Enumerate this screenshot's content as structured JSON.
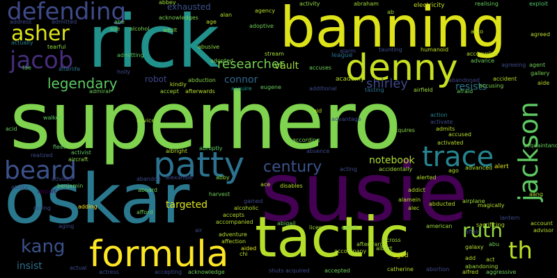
{
  "background": "#000000",
  "palette": [
    "#440154",
    "#3b528b",
    "#21918c",
    "#5ec962",
    "#fde725",
    "#7fd34e",
    "#2a788e",
    "#482878"
  ],
  "words": [
    {
      "text": "superhero",
      "color": "#7fd34e",
      "vertical": false
    },
    {
      "text": "susie",
      "color": "#440154",
      "vertical": false
    },
    {
      "text": "rick",
      "color": "#21918c",
      "vertical": false
    },
    {
      "text": "banning",
      "color": "#dde318",
      "vertical": false
    },
    {
      "text": "oskar",
      "color": "#2a788e",
      "vertical": false
    },
    {
      "text": "tactic",
      "color": "#b5de2b",
      "vertical": false
    },
    {
      "text": "denny",
      "color": "#c8e020",
      "vertical": false
    },
    {
      "text": "patty",
      "color": "#2c728e",
      "vertical": false
    },
    {
      "text": "formula",
      "color": "#fde725",
      "vertical": false
    },
    {
      "text": "beard",
      "color": "#3b528b",
      "vertical": false
    },
    {
      "text": "trace",
      "color": "#25848e",
      "vertical": false
    },
    {
      "text": "jackson",
      "color": "#5ec962",
      "vertical": true
    },
    {
      "text": "defending",
      "color": "#3e4a89",
      "vertical": false
    },
    {
      "text": "asher",
      "color": "#dde318",
      "vertical": false
    },
    {
      "text": "jacob",
      "color": "#472d7b",
      "vertical": false
    },
    {
      "text": "ruth",
      "color": "#95d840",
      "vertical": false
    },
    {
      "text": "th",
      "color": "#b8de29",
      "vertical": false
    },
    {
      "text": "kang",
      "color": "#3b528b",
      "vertical": false
    },
    {
      "text": "century",
      "color": "#3b528b",
      "vertical": false
    },
    {
      "text": "legendary",
      "color": "#5ec962",
      "vertical": false
    },
    {
      "text": "researcher",
      "color": "#75d054",
      "vertical": false
    },
    {
      "text": "shirley",
      "color": "#3e4989",
      "vertical": false
    },
    {
      "text": "notebook",
      "color": "#addc30",
      "vertical": false
    },
    {
      "text": "resists",
      "color": "#2a788e",
      "vertical": false
    },
    {
      "text": "connor",
      "color": "#31688e",
      "vertical": false
    },
    {
      "text": "insist",
      "color": "#2d708e",
      "vertical": false
    },
    {
      "text": "targeted",
      "color": "#dde318",
      "vertical": false
    },
    {
      "text": "vault",
      "color": "#9fda3a",
      "vertical": false
    },
    {
      "text": "exhausted",
      "color": "#3b528b",
      "vertical": false
    },
    {
      "text": "robot",
      "color": "#414487",
      "vertical": false
    },
    {
      "text": "league",
      "color": "#2c728e",
      "vertical": false
    },
    {
      "text": "academy",
      "color": "#b5de2b",
      "vertical": false
    },
    {
      "text": "abbey",
      "color": "#9fda3a",
      "vertical": false
    },
    {
      "text": "acknowledges",
      "color": "#7ad151",
      "vertical": false
    },
    {
      "text": "alan",
      "color": "#b5de2b",
      "vertical": false
    },
    {
      "text": "agency",
      "color": "#b5de2b",
      "vertical": false
    },
    {
      "text": "activity",
      "color": "#93d741",
      "vertical": false
    },
    {
      "text": "abraham",
      "color": "#a0da39",
      "vertical": false
    },
    {
      "text": "electricity",
      "color": "#c2df23",
      "vertical": false
    },
    {
      "text": "realising",
      "color": "#67cc5c",
      "vertical": false
    },
    {
      "text": "exploit",
      "color": "#52c569",
      "vertical": false
    },
    {
      "text": "address",
      "color": "#3e4a89",
      "vertical": false
    },
    {
      "text": "admitted",
      "color": "#3e4a89",
      "vertical": false
    },
    {
      "text": "abe",
      "color": "#5ec962",
      "vertical": false
    },
    {
      "text": "sue",
      "color": "#7ad151",
      "vertical": false
    },
    {
      "text": "alcohol",
      "color": "#7ad151",
      "vertical": false
    },
    {
      "text": "adult",
      "color": "#8bd646",
      "vertical": false
    },
    {
      "text": "age",
      "color": "#b8de29",
      "vertical": false
    },
    {
      "text": "adoptive",
      "color": "#6ece58",
      "vertical": false
    },
    {
      "text": "auto",
      "color": "#bddf26",
      "vertical": false
    },
    {
      "text": "agreed",
      "color": "#b5de2b",
      "vertical": false
    },
    {
      "text": "actually",
      "color": "#26828e",
      "vertical": false
    },
    {
      "text": "tearful",
      "color": "#8bd646",
      "vertical": false
    },
    {
      "text": "abusive",
      "color": "#8bd646",
      "vertical": false
    },
    {
      "text": "admitting",
      "color": "#5ec962",
      "vertical": false
    },
    {
      "text": "afterlife",
      "color": "#2c728e",
      "vertical": false
    },
    {
      "text": "holly",
      "color": "#3e4a89",
      "vertical": false
    },
    {
      "text": "stream",
      "color": "#a5db36",
      "vertical": false
    },
    {
      "text": "adopted",
      "color": "#7ad151",
      "vertical": false
    },
    {
      "text": "alarm",
      "color": "#3e4a89",
      "vertical": false
    },
    {
      "text": "taunting",
      "color": "#3b528b",
      "vertical": false
    },
    {
      "text": "humanoid",
      "color": "#c2df23",
      "vertical": false
    },
    {
      "text": "accomplice",
      "color": "#b5de2b",
      "vertical": false
    },
    {
      "text": "advance",
      "color": "#6ece58",
      "vertical": false
    },
    {
      "text": "agreeing",
      "color": "#3e4a89",
      "vertical": false
    },
    {
      "text": "agent",
      "color": "#6ece58",
      "vertical": false
    },
    {
      "text": "gallery",
      "color": "#7ad151",
      "vertical": false
    },
    {
      "text": "tae",
      "color": "#5ec962",
      "vertical": false
    },
    {
      "text": "abduction",
      "color": "#8bd646",
      "vertical": false
    },
    {
      "text": "kindly",
      "color": "#b5de2b",
      "vertical": false
    },
    {
      "text": "admiral",
      "color": "#6ece58",
      "vertical": false
    },
    {
      "text": "accept",
      "color": "#a0da39",
      "vertical": false
    },
    {
      "text": "afterwards",
      "color": "#b5de2b",
      "vertical": false
    },
    {
      "text": "acquire",
      "color": "#1f968b",
      "vertical": false
    },
    {
      "text": "eugene",
      "color": "#67cc5c",
      "vertical": false
    },
    {
      "text": "additional",
      "color": "#3e4a89",
      "vertical": false
    },
    {
      "text": "accuses",
      "color": "#6ece58",
      "vertical": false
    },
    {
      "text": "abandoned",
      "color": "#414487",
      "vertical": false
    },
    {
      "text": "accident",
      "color": "#b8de29",
      "vertical": false
    },
    {
      "text": "accusing",
      "color": "#7ad151",
      "vertical": false
    },
    {
      "text": "aide",
      "color": "#b8de29",
      "vertical": false
    },
    {
      "text": "afraid",
      "color": "#67cc5c",
      "vertical": false
    },
    {
      "text": "tasting",
      "color": "#2c728e",
      "vertical": false
    },
    {
      "text": "airfield",
      "color": "#a0da39",
      "vertical": false
    },
    {
      "text": "walker",
      "color": "#5ec962",
      "vertical": false
    },
    {
      "text": "advice",
      "color": "#a0da39",
      "vertical": false
    },
    {
      "text": "aid",
      "color": "#b5de2b",
      "vertical": false
    },
    {
      "text": "action",
      "color": "#26828e",
      "vertical": false
    },
    {
      "text": "activate",
      "color": "#3e4a89",
      "vertical": false
    },
    {
      "text": "admits",
      "color": "#b8de29",
      "vertical": false
    },
    {
      "text": "accused",
      "color": "#b5de2b",
      "vertical": false
    },
    {
      "text": "acid",
      "color": "#67cc5c",
      "vertical": false
    },
    {
      "text": "acquires",
      "color": "#8bd646",
      "vertical": false
    },
    {
      "text": "activated",
      "color": "#b5de2b",
      "vertical": false
    },
    {
      "text": "fleet",
      "color": "#5ec962",
      "vertical": false
    },
    {
      "text": "activist",
      "color": "#5ec962",
      "vertical": false
    },
    {
      "text": "abruptly",
      "color": "#5ec962",
      "vertical": false
    },
    {
      "text": "albright",
      "color": "#b5de2b",
      "vertical": false
    },
    {
      "text": "realized",
      "color": "#3e4a89",
      "vertical": false
    },
    {
      "text": "aircraft",
      "color": "#8bd646",
      "vertical": false
    },
    {
      "text": "absence",
      "color": "#3e4a89",
      "vertical": false
    },
    {
      "text": "according",
      "color": "#7ad151",
      "vertical": false
    },
    {
      "text": "advantage",
      "color": "#3e4a89",
      "vertical": false
    },
    {
      "text": "ago",
      "color": "#b5de2b",
      "vertical": false
    },
    {
      "text": "advanced",
      "color": "#b5de2b",
      "vertical": false
    },
    {
      "text": "alert",
      "color": "#dde318",
      "vertical": false
    },
    {
      "text": "acquaintance",
      "color": "#67cc5c",
      "vertical": false
    },
    {
      "text": "ability",
      "color": "#3e4a89",
      "vertical": false
    },
    {
      "text": "benjamin",
      "color": "#67cc5c",
      "vertical": false
    },
    {
      "text": "advises",
      "color": "#3e4a89",
      "vertical": false
    },
    {
      "text": "abandon",
      "color": "#3e4a89",
      "vertical": false
    },
    {
      "text": "alexander",
      "color": "#3e4a89",
      "vertical": false
    },
    {
      "text": "abby",
      "color": "#8bd646",
      "vertical": false
    },
    {
      "text": "ace",
      "color": "#b5de2b",
      "vertical": false
    },
    {
      "text": "disables",
      "color": "#b5de2b",
      "vertical": false
    },
    {
      "text": "acting",
      "color": "#3e4a89",
      "vertical": false
    },
    {
      "text": "accidentally",
      "color": "#a0da39",
      "vertical": false
    },
    {
      "text": "alerted",
      "color": "#b5de2b",
      "vertical": false
    },
    {
      "text": "addict",
      "color": "#b5de2b",
      "vertical": false
    },
    {
      "text": "airport",
      "color": "#440154",
      "vertical": false
    },
    {
      "text": "aboard",
      "color": "#6ece58",
      "vertical": false
    },
    {
      "text": "harvest",
      "color": "#6ece58",
      "vertical": false
    },
    {
      "text": "gained",
      "color": "#3e4a89",
      "vertical": false
    },
    {
      "text": "alamein",
      "color": "#b8de29",
      "vertical": false
    },
    {
      "text": "abducted",
      "color": "#b8de29",
      "vertical": false
    },
    {
      "text": "magically",
      "color": "#b5de2b",
      "vertical": false
    },
    {
      "text": "aang",
      "color": "#b8de29",
      "vertical": false
    },
    {
      "text": "racing",
      "color": "#3e4a89",
      "vertical": false
    },
    {
      "text": "adding",
      "color": "#fde725",
      "vertical": false
    },
    {
      "text": "afford",
      "color": "#6ece58",
      "vertical": false
    },
    {
      "text": "alcoholic",
      "color": "#b5de2b",
      "vertical": false
    },
    {
      "text": "alec",
      "color": "#b5de2b",
      "vertical": false
    },
    {
      "text": "airplane",
      "color": "#a0da39",
      "vertical": false
    },
    {
      "text": "lantern",
      "color": "#3e4a89",
      "vertical": false
    },
    {
      "text": "aging",
      "color": "#3e4a89",
      "vertical": false
    },
    {
      "text": "accepts",
      "color": "#b5de2b",
      "vertical": false
    },
    {
      "text": "abigail",
      "color": "#6ece58",
      "vertical": false
    },
    {
      "text": "license",
      "color": "#a0da39",
      "vertical": false
    },
    {
      "text": "admit",
      "color": "#6ece58",
      "vertical": false
    },
    {
      "text": "american",
      "color": "#a0da39",
      "vertical": false
    },
    {
      "text": "sacrificing",
      "color": "#b5de2b",
      "vertical": false
    },
    {
      "text": "account",
      "color": "#b5de2b",
      "vertical": false
    },
    {
      "text": "affair",
      "color": "#3e4a89",
      "vertical": false
    },
    {
      "text": "advisor",
      "color": "#b5de2b",
      "vertical": false
    },
    {
      "text": "air",
      "color": "#3e4a89",
      "vertical": false
    },
    {
      "text": "accompanied",
      "color": "#b5de2b",
      "vertical": false
    },
    {
      "text": "adventure",
      "color": "#b5de2b",
      "vertical": false
    },
    {
      "text": "affection",
      "color": "#b5de2b",
      "vertical": false
    },
    {
      "text": "afterward",
      "color": "#a0da39",
      "vertical": false
    },
    {
      "text": "albert",
      "color": "#a0da39",
      "vertical": false
    },
    {
      "text": "across",
      "color": "#a0da39",
      "vertical": false
    },
    {
      "text": "galaxy",
      "color": "#b5de2b",
      "vertical": false
    },
    {
      "text": "abu",
      "color": "#6ece58",
      "vertical": false
    },
    {
      "text": "actual",
      "color": "#3e4a89",
      "vertical": false
    },
    {
      "text": "aided",
      "color": "#dde318",
      "vertical": false
    },
    {
      "text": "chi",
      "color": "#b5de2b",
      "vertical": false
    },
    {
      "text": "accompany",
      "color": "#b5de2b",
      "vertical": false
    },
    {
      "text": "aged",
      "color": "#dde318",
      "vertical": false
    },
    {
      "text": "add",
      "color": "#b5de2b",
      "vertical": false
    },
    {
      "text": "act",
      "color": "#b5de2b",
      "vertical": false
    },
    {
      "text": "actress",
      "color": "#3e4a89",
      "vertical": false
    },
    {
      "text": "accepting",
      "color": "#3e4a89",
      "vertical": false
    },
    {
      "text": "acknowledge",
      "color": "#6ece58",
      "vertical": false
    },
    {
      "text": "shuts",
      "color": "#3e4a89",
      "vertical": false
    },
    {
      "text": "acquired",
      "color": "#3e4a89",
      "vertical": false
    },
    {
      "text": "accepted",
      "color": "#6ece58",
      "vertical": false
    },
    {
      "text": "catherine",
      "color": "#b5de2b",
      "vertical": false
    },
    {
      "text": "abortion",
      "color": "#3e4a89",
      "vertical": false
    },
    {
      "text": "alfred",
      "color": "#b5de2b",
      "vertical": false
    },
    {
      "text": "abandoning",
      "color": "#a0da39",
      "vertical": false
    },
    {
      "text": "aggressive",
      "color": "#6ece58",
      "vertical": false
    },
    {
      "text": "ab",
      "color": "#a0da39",
      "vertical": false
    }
  ]
}
